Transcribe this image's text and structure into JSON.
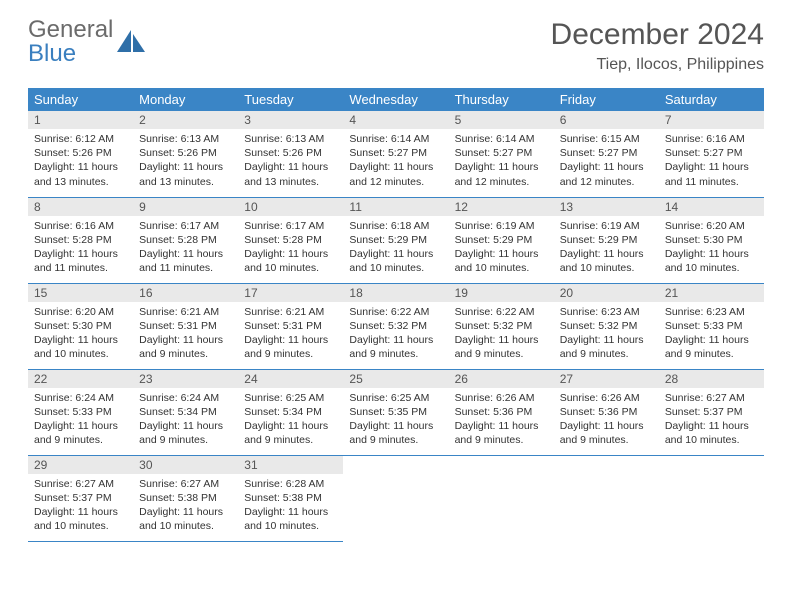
{
  "logo": {
    "text_general": "General",
    "text_blue": "Blue",
    "accent_color": "#3a7fbf",
    "muted_color": "#6b6b6b"
  },
  "header": {
    "month_title": "December 2024",
    "location": "Tiep, Ilocos, Philippines"
  },
  "calendar": {
    "header_bg": "#3a85c6",
    "header_fg": "#ffffff",
    "daynum_bg": "#e9e9e9",
    "border_color": "#3a85c6",
    "day_headers": [
      "Sunday",
      "Monday",
      "Tuesday",
      "Wednesday",
      "Thursday",
      "Friday",
      "Saturday"
    ],
    "weeks": [
      [
        {
          "n": "1",
          "sunrise": "6:12 AM",
          "sunset": "5:26 PM",
          "daylight": "11 hours and 13 minutes."
        },
        {
          "n": "2",
          "sunrise": "6:13 AM",
          "sunset": "5:26 PM",
          "daylight": "11 hours and 13 minutes."
        },
        {
          "n": "3",
          "sunrise": "6:13 AM",
          "sunset": "5:26 PM",
          "daylight": "11 hours and 13 minutes."
        },
        {
          "n": "4",
          "sunrise": "6:14 AM",
          "sunset": "5:27 PM",
          "daylight": "11 hours and 12 minutes."
        },
        {
          "n": "5",
          "sunrise": "6:14 AM",
          "sunset": "5:27 PM",
          "daylight": "11 hours and 12 minutes."
        },
        {
          "n": "6",
          "sunrise": "6:15 AM",
          "sunset": "5:27 PM",
          "daylight": "11 hours and 12 minutes."
        },
        {
          "n": "7",
          "sunrise": "6:16 AM",
          "sunset": "5:27 PM",
          "daylight": "11 hours and 11 minutes."
        }
      ],
      [
        {
          "n": "8",
          "sunrise": "6:16 AM",
          "sunset": "5:28 PM",
          "daylight": "11 hours and 11 minutes."
        },
        {
          "n": "9",
          "sunrise": "6:17 AM",
          "sunset": "5:28 PM",
          "daylight": "11 hours and 11 minutes."
        },
        {
          "n": "10",
          "sunrise": "6:17 AM",
          "sunset": "5:28 PM",
          "daylight": "11 hours and 10 minutes."
        },
        {
          "n": "11",
          "sunrise": "6:18 AM",
          "sunset": "5:29 PM",
          "daylight": "11 hours and 10 minutes."
        },
        {
          "n": "12",
          "sunrise": "6:19 AM",
          "sunset": "5:29 PM",
          "daylight": "11 hours and 10 minutes."
        },
        {
          "n": "13",
          "sunrise": "6:19 AM",
          "sunset": "5:29 PM",
          "daylight": "11 hours and 10 minutes."
        },
        {
          "n": "14",
          "sunrise": "6:20 AM",
          "sunset": "5:30 PM",
          "daylight": "11 hours and 10 minutes."
        }
      ],
      [
        {
          "n": "15",
          "sunrise": "6:20 AM",
          "sunset": "5:30 PM",
          "daylight": "11 hours and 10 minutes."
        },
        {
          "n": "16",
          "sunrise": "6:21 AM",
          "sunset": "5:31 PM",
          "daylight": "11 hours and 9 minutes."
        },
        {
          "n": "17",
          "sunrise": "6:21 AM",
          "sunset": "5:31 PM",
          "daylight": "11 hours and 9 minutes."
        },
        {
          "n": "18",
          "sunrise": "6:22 AM",
          "sunset": "5:32 PM",
          "daylight": "11 hours and 9 minutes."
        },
        {
          "n": "19",
          "sunrise": "6:22 AM",
          "sunset": "5:32 PM",
          "daylight": "11 hours and 9 minutes."
        },
        {
          "n": "20",
          "sunrise": "6:23 AM",
          "sunset": "5:32 PM",
          "daylight": "11 hours and 9 minutes."
        },
        {
          "n": "21",
          "sunrise": "6:23 AM",
          "sunset": "5:33 PM",
          "daylight": "11 hours and 9 minutes."
        }
      ],
      [
        {
          "n": "22",
          "sunrise": "6:24 AM",
          "sunset": "5:33 PM",
          "daylight": "11 hours and 9 minutes."
        },
        {
          "n": "23",
          "sunrise": "6:24 AM",
          "sunset": "5:34 PM",
          "daylight": "11 hours and 9 minutes."
        },
        {
          "n": "24",
          "sunrise": "6:25 AM",
          "sunset": "5:34 PM",
          "daylight": "11 hours and 9 minutes."
        },
        {
          "n": "25",
          "sunrise": "6:25 AM",
          "sunset": "5:35 PM",
          "daylight": "11 hours and 9 minutes."
        },
        {
          "n": "26",
          "sunrise": "6:26 AM",
          "sunset": "5:36 PM",
          "daylight": "11 hours and 9 minutes."
        },
        {
          "n": "27",
          "sunrise": "6:26 AM",
          "sunset": "5:36 PM",
          "daylight": "11 hours and 9 minutes."
        },
        {
          "n": "28",
          "sunrise": "6:27 AM",
          "sunset": "5:37 PM",
          "daylight": "11 hours and 10 minutes."
        }
      ],
      [
        {
          "n": "29",
          "sunrise": "6:27 AM",
          "sunset": "5:37 PM",
          "daylight": "11 hours and 10 minutes."
        },
        {
          "n": "30",
          "sunrise": "6:27 AM",
          "sunset": "5:38 PM",
          "daylight": "11 hours and 10 minutes."
        },
        {
          "n": "31",
          "sunrise": "6:28 AM",
          "sunset": "5:38 PM",
          "daylight": "11 hours and 10 minutes."
        },
        null,
        null,
        null,
        null
      ]
    ],
    "labels": {
      "sunrise": "Sunrise:",
      "sunset": "Sunset:",
      "daylight": "Daylight:"
    }
  }
}
